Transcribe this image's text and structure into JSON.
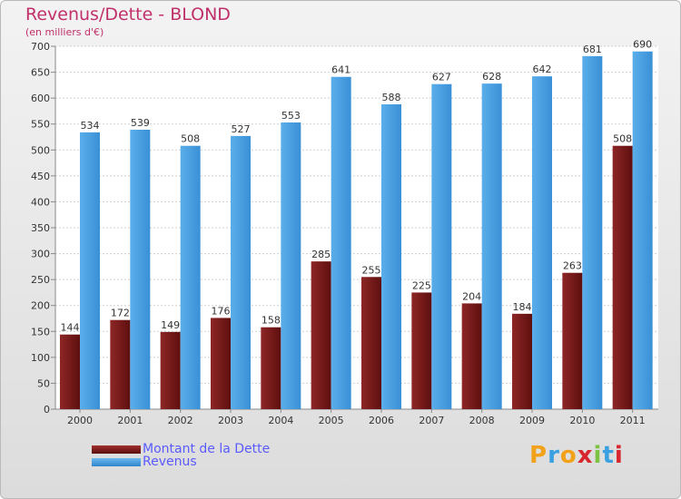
{
  "chart_data": {
    "type": "bar",
    "title": "Revenus/Dette - BLOND",
    "subtitle": "(en milliers d'€)",
    "categories": [
      "2000",
      "2001",
      "2002",
      "2003",
      "2004",
      "2005",
      "2006",
      "2007",
      "2008",
      "2009",
      "2010",
      "2011"
    ],
    "series": [
      {
        "name": "Montant de la Dette",
        "color": "#7a1a1a",
        "values": [
          144,
          172,
          149,
          176,
          158,
          285,
          255,
          225,
          204,
          184,
          263,
          508
        ]
      },
      {
        "name": "Revenus",
        "color": "#4da3e4",
        "values": [
          534,
          539,
          508,
          527,
          553,
          641,
          588,
          627,
          628,
          642,
          681,
          690
        ]
      }
    ],
    "ylim": [
      0,
      700
    ],
    "yticks": [
      0,
      50,
      100,
      150,
      200,
      250,
      300,
      350,
      400,
      450,
      500,
      550,
      600,
      650,
      700
    ],
    "grid": true,
    "legend_position": "bottom-left"
  },
  "brand": {
    "letters": [
      "P",
      "r",
      "o",
      "x",
      "i",
      "t",
      "i"
    ],
    "colors": [
      "#f2a21a",
      "#3aa0e0",
      "#f2a21a",
      "#d8262e",
      "#7cc243",
      "#3aa0e0",
      "#d8262e"
    ]
  }
}
